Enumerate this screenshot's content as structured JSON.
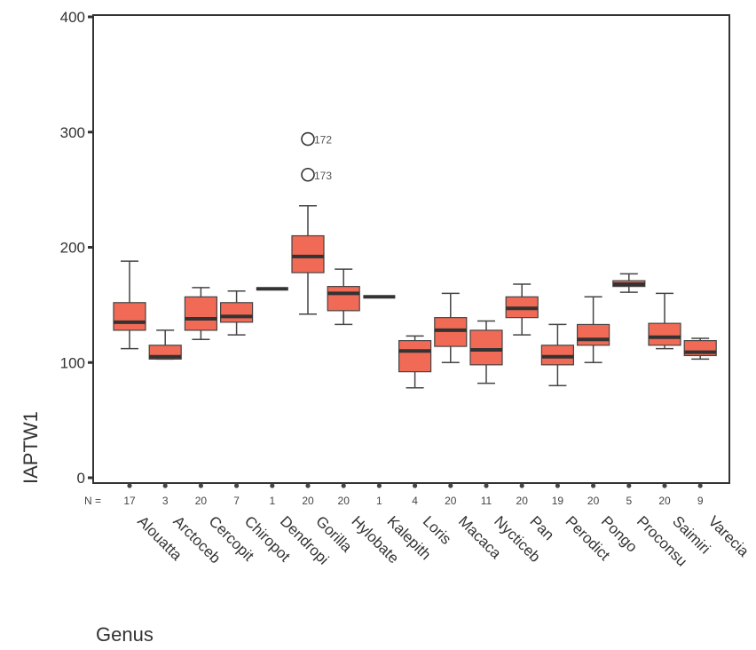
{
  "chart_data": {
    "type": "boxplot",
    "xlabel": "Genus",
    "ylabel": "IAPTW1",
    "ylim": [
      0,
      400
    ],
    "yticks": [
      0,
      100,
      200,
      300,
      400
    ],
    "n_prefix": "N =",
    "colors": {
      "box": "#f06a55",
      "median": "#333333",
      "whisker": "#444444",
      "axis": "#333333"
    },
    "categories": [
      "Alouatta",
      "Arctoceb",
      "Cercopit",
      "Chiropot",
      "Dendropi",
      "Gorilla",
      "Hylobate",
      "Kalepith",
      "Loris",
      "Macaca",
      "Nycticeb",
      "Pan",
      "Perodict",
      "Pongo",
      "Proconsu",
      "Saimiri",
      "Varecia"
    ],
    "n": [
      "17",
      "3",
      "20",
      "7",
      "1",
      "20",
      "20",
      "1",
      "4",
      "20",
      "11",
      "20",
      "19",
      "20",
      "5",
      "20",
      "9"
    ],
    "boxes": [
      {
        "min": 112,
        "q1": 128,
        "median": 135,
        "q3": 152,
        "max": 188
      },
      {
        "min": 103,
        "q1": 103,
        "median": 105,
        "q3": 115,
        "max": 128
      },
      {
        "min": 120,
        "q1": 128,
        "median": 138,
        "q3": 157,
        "max": 165
      },
      {
        "min": 124,
        "q1": 135,
        "median": 140,
        "q3": 152,
        "max": 162
      },
      {
        "min": 164,
        "q1": 164,
        "median": 164,
        "q3": 164,
        "max": 164
      },
      {
        "min": 142,
        "q1": 178,
        "median": 192,
        "q3": 210,
        "max": 236
      },
      {
        "min": 133,
        "q1": 145,
        "median": 160,
        "q3": 166,
        "max": 181
      },
      {
        "min": 157,
        "q1": 157,
        "median": 157,
        "q3": 157,
        "max": 157
      },
      {
        "min": 78,
        "q1": 92,
        "median": 110,
        "q3": 119,
        "max": 123
      },
      {
        "min": 100,
        "q1": 114,
        "median": 128,
        "q3": 139,
        "max": 160
      },
      {
        "min": 82,
        "q1": 98,
        "median": 111,
        "q3": 128,
        "max": 136
      },
      {
        "min": 124,
        "q1": 139,
        "median": 147,
        "q3": 157,
        "max": 168
      },
      {
        "min": 80,
        "q1": 98,
        "median": 105,
        "q3": 115,
        "max": 133
      },
      {
        "min": 100,
        "q1": 115,
        "median": 120,
        "q3": 133,
        "max": 157
      },
      {
        "min": 161,
        "q1": 166,
        "median": 168,
        "q3": 171,
        "max": 177
      },
      {
        "min": 112,
        "q1": 115,
        "median": 122,
        "q3": 134,
        "max": 160
      },
      {
        "min": 103,
        "q1": 106,
        "median": 109,
        "q3": 119,
        "max": 121
      }
    ],
    "outliers": [
      {
        "category": "Gorilla",
        "value": 294,
        "label": "172"
      },
      {
        "category": "Gorilla",
        "value": 263,
        "label": "173"
      }
    ]
  }
}
